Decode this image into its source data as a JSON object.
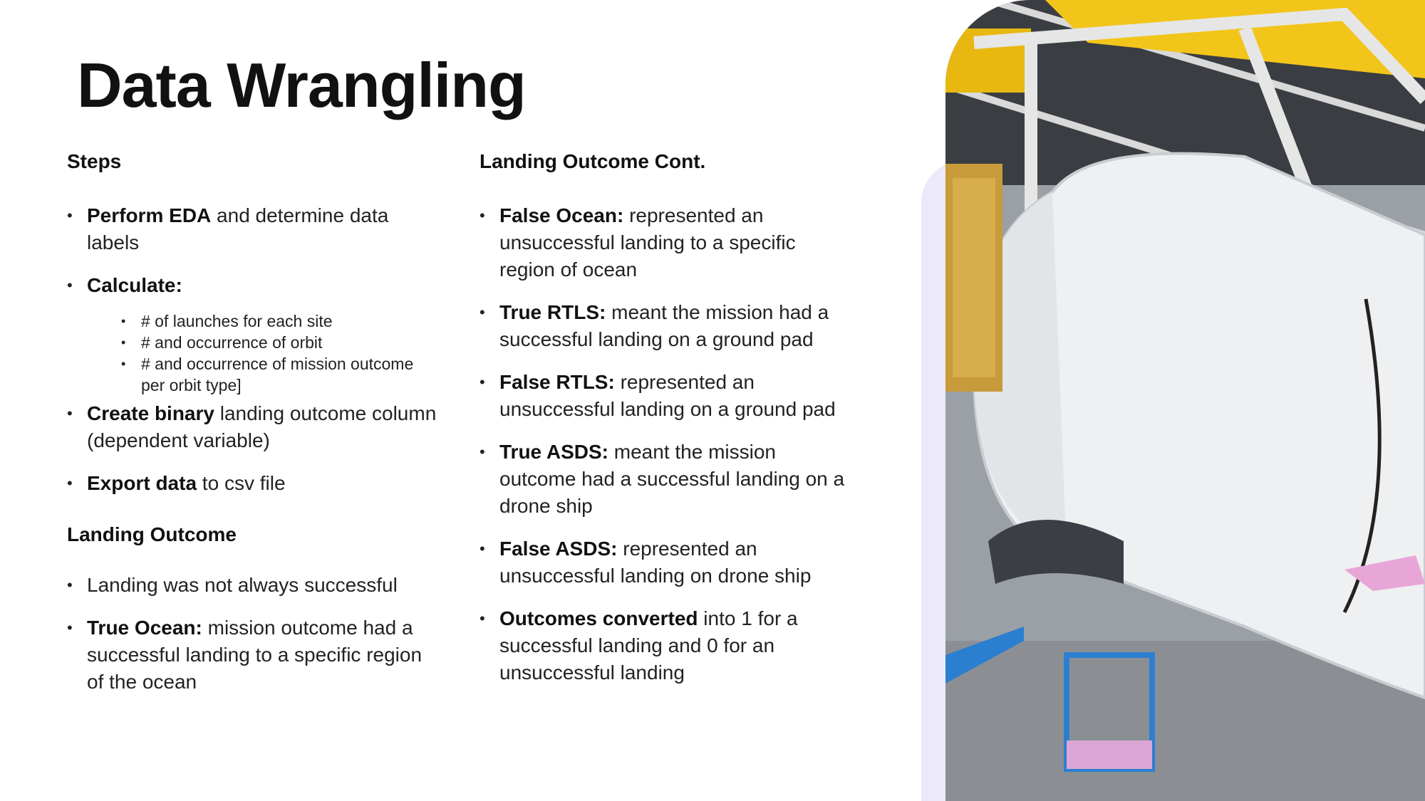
{
  "slide": {
    "title": "Data Wrangling"
  },
  "steps": {
    "heading": "Steps",
    "items": [
      {
        "bold": "Perform EDA",
        "text": " and determine data labels"
      },
      {
        "bold": "Calculate:",
        "text": ""
      },
      {
        "bold": "Create binary",
        "text": " landing outcome column (dependent variable)"
      },
      {
        "bold": "Export data",
        "text": " to csv file"
      }
    ],
    "calculate_sub": [
      "# of launches for each site",
      "# and occurrence of orbit",
      "# and occurrence of mission outcome per orbit type]"
    ]
  },
  "landing_outcome": {
    "heading": "Landing Outcome",
    "items": [
      {
        "bold": "",
        "text": "Landing was not always successful"
      },
      {
        "bold": "True Ocean:",
        "text": " mission outcome had a successful landing to a specific region of the ocean"
      }
    ]
  },
  "landing_outcome_cont": {
    "heading": "Landing Outcome Cont.",
    "items": [
      {
        "bold": "False Ocean:",
        "text": " represented an unsuccessful landing to a specific region of ocean"
      },
      {
        "bold": "True RTLS:",
        "text": " meant the mission had a successful landing on a ground pad"
      },
      {
        "bold": "False RTLS:",
        "text": " represented an unsuccessful landing on a ground pad"
      },
      {
        "bold": "True ASDS:",
        "text": " meant the mission outcome had a successful landing on a drone ship"
      },
      {
        "bold": "False ASDS:",
        "text": " represented an unsuccessful landing on drone ship"
      },
      {
        "bold": "Outcomes converted",
        "text": " into 1 for a successful landing and 0 for an unsuccessful landing"
      }
    ]
  },
  "colors": {
    "accent_strip": "#ece9fb",
    "hangar_beam": "#f2c51a",
    "capsule": "#eef0f2",
    "lift": "#2b7fd0"
  },
  "icons": {
    "bullet": "bullet-dot"
  }
}
